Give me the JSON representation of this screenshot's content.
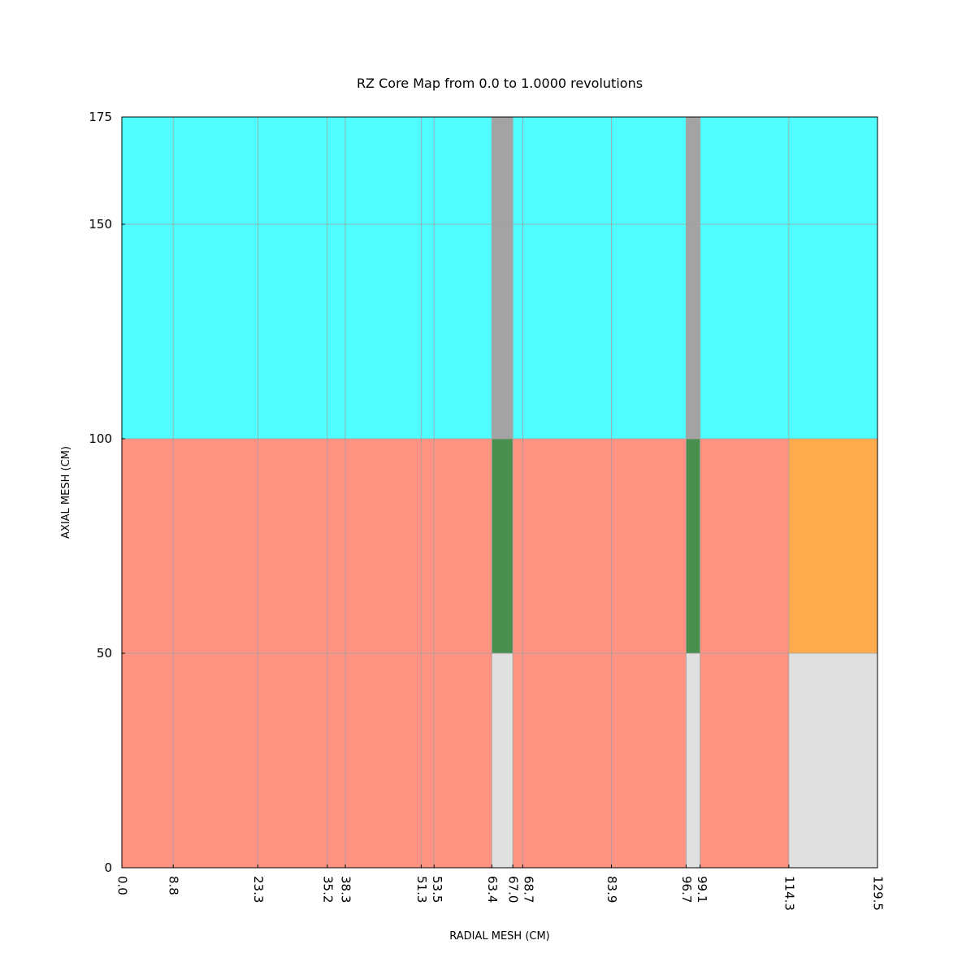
{
  "chart_data": {
    "type": "heatmap",
    "title": "RZ Core Map from 0.0 to 1.0000 revolutions",
    "xlabel": "RADIAL MESH (CM)",
    "ylabel": "AXIAL MESH (CM)",
    "xlim": [
      0.0,
      129.5
    ],
    "ylim": [
      0,
      175
    ],
    "x_ticks": [
      0.0,
      8.8,
      23.3,
      35.2,
      38.3,
      51.3,
      53.5,
      63.4,
      67.0,
      68.7,
      83.9,
      96.7,
      99.1,
      114.3,
      129.5
    ],
    "x_tick_labels": [
      "0.0",
      "8.8",
      "23.3",
      "35.2",
      "38.3",
      "51.3",
      "53.5",
      "63.4",
      "67.0",
      "68.7",
      "83.9",
      "96.7",
      "99.1",
      "114.3",
      "129.5"
    ],
    "y_ticks": [
      0,
      50,
      100,
      150,
      175
    ],
    "y_tick_labels": [
      "0",
      "50",
      "100",
      "150",
      "175"
    ],
    "grid": true,
    "colors": {
      "cyan": "#4fffff",
      "gray": "#a3a3a3",
      "salmon": "#ff9280",
      "green": "#4a8f4d",
      "orange": "#ffad4c",
      "lightgray": "#e0e0e0",
      "grid": "#a0a0a0"
    },
    "regions": [
      {
        "r": [
          0.0,
          63.4
        ],
        "z": [
          100,
          175
        ],
        "color": "cyan"
      },
      {
        "r": [
          63.4,
          67.0
        ],
        "z": [
          100,
          175
        ],
        "color": "gray"
      },
      {
        "r": [
          67.0,
          96.7
        ],
        "z": [
          100,
          175
        ],
        "color": "cyan"
      },
      {
        "r": [
          96.7,
          99.1
        ],
        "z": [
          100,
          175
        ],
        "color": "gray"
      },
      {
        "r": [
          99.1,
          129.5
        ],
        "z": [
          100,
          175
        ],
        "color": "cyan"
      },
      {
        "r": [
          0.0,
          63.4
        ],
        "z": [
          50,
          100
        ],
        "color": "salmon"
      },
      {
        "r": [
          63.4,
          67.0
        ],
        "z": [
          50,
          100
        ],
        "color": "green"
      },
      {
        "r": [
          67.0,
          96.7
        ],
        "z": [
          50,
          100
        ],
        "color": "salmon"
      },
      {
        "r": [
          96.7,
          99.1
        ],
        "z": [
          50,
          100
        ],
        "color": "green"
      },
      {
        "r": [
          99.1,
          114.3
        ],
        "z": [
          50,
          100
        ],
        "color": "salmon"
      },
      {
        "r": [
          114.3,
          129.5
        ],
        "z": [
          50,
          100
        ],
        "color": "orange"
      },
      {
        "r": [
          0.0,
          63.4
        ],
        "z": [
          0,
          50
        ],
        "color": "salmon"
      },
      {
        "r": [
          63.4,
          67.0
        ],
        "z": [
          0,
          50
        ],
        "color": "lightgray"
      },
      {
        "r": [
          67.0,
          96.7
        ],
        "z": [
          0,
          50
        ],
        "color": "salmon"
      },
      {
        "r": [
          96.7,
          99.1
        ],
        "z": [
          0,
          50
        ],
        "color": "lightgray"
      },
      {
        "r": [
          99.1,
          114.3
        ],
        "z": [
          0,
          50
        ],
        "color": "salmon"
      },
      {
        "r": [
          114.3,
          129.5
        ],
        "z": [
          0,
          50
        ],
        "color": "lightgray"
      }
    ]
  }
}
